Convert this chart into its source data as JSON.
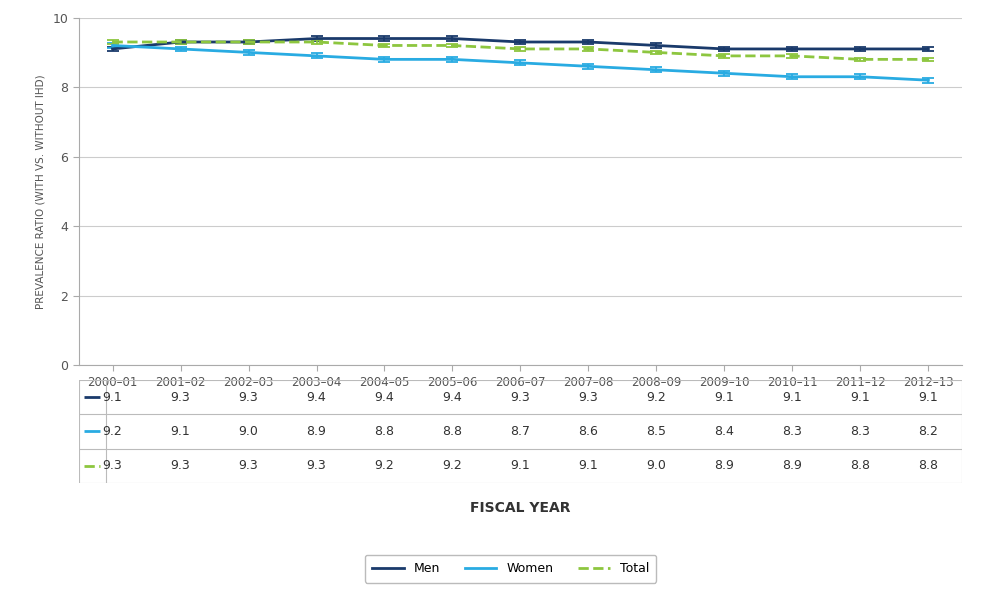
{
  "categories": [
    "2000–01",
    "2001–02",
    "2002–03",
    "2003–04",
    "2004–05",
    "2005–06",
    "2006–07",
    "2007–08",
    "2008–09",
    "2009–10",
    "2010–11",
    "2011–12",
    "2012–13"
  ],
  "men_values": [
    9.1,
    9.3,
    9.3,
    9.4,
    9.4,
    9.4,
    9.3,
    9.3,
    9.2,
    9.1,
    9.1,
    9.1,
    9.1
  ],
  "women_values": [
    9.2,
    9.1,
    9.0,
    8.9,
    8.8,
    8.8,
    8.7,
    8.6,
    8.5,
    8.4,
    8.3,
    8.3,
    8.2
  ],
  "total_values": [
    9.3,
    9.3,
    9.3,
    9.3,
    9.2,
    9.2,
    9.1,
    9.1,
    9.0,
    8.9,
    8.9,
    8.8,
    8.8
  ],
  "men_errors": [
    0.07,
    0.07,
    0.07,
    0.07,
    0.07,
    0.07,
    0.07,
    0.07,
    0.07,
    0.07,
    0.07,
    0.07,
    0.07
  ],
  "women_errors": [
    0.07,
    0.07,
    0.07,
    0.07,
    0.07,
    0.07,
    0.07,
    0.07,
    0.07,
    0.07,
    0.07,
    0.07,
    0.07
  ],
  "total_errors": [
    0.05,
    0.05,
    0.05,
    0.05,
    0.05,
    0.05,
    0.05,
    0.05,
    0.05,
    0.05,
    0.05,
    0.05,
    0.05
  ],
  "men_color": "#1a3a6b",
  "women_color": "#29abe2",
  "total_color": "#8dc63f",
  "ylabel": "PREVALENCE RATIO (WITH VS. WITHOUT IHD)",
  "xlabel": "FISCAL YEAR",
  "ylim": [
    0,
    10
  ],
  "yticks": [
    0,
    2,
    4,
    6,
    8,
    10
  ],
  "background_color": "#ffffff",
  "grid_color": "#cccccc",
  "table_border_color": "#bbbbbb",
  "tick_label_color": "#555555",
  "value_fontsize": 9.0,
  "axis_label_fontsize": 8.5,
  "xlabel_fontsize": 10
}
